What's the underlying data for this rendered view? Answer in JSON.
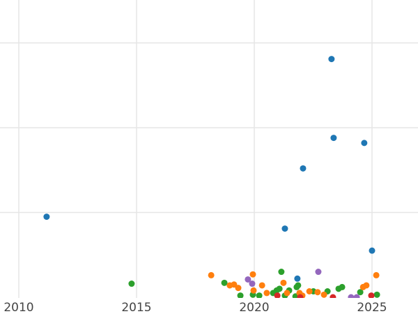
{
  "chart_data": {
    "type": "scatter",
    "title": "",
    "xlabel": "",
    "ylabel": "",
    "xlim": [
      2009.95,
      2027.0
    ],
    "ylim": [
      0,
      3.5
    ],
    "grid": true,
    "x_ticks": [
      "2010",
      "2015",
      "2020",
      "2025"
    ],
    "y_gridlines": [
      1,
      2,
      3
    ],
    "series": [
      {
        "color": "#1f77b4",
        "points": [
          [
            2023.28,
            2.81
          ],
          [
            2023.37,
            1.88
          ],
          [
            2024.67,
            1.82
          ],
          [
            2022.07,
            1.52
          ],
          [
            2011.18,
            0.95
          ],
          [
            2021.3,
            0.81
          ],
          [
            2025.0,
            0.55
          ],
          [
            2021.83,
            0.22
          ]
        ]
      },
      {
        "color": "#2ca02c",
        "points": [
          [
            2014.79,
            0.16
          ],
          [
            2018.73,
            0.17
          ],
          [
            2019.41,
            0.02
          ],
          [
            2019.94,
            0.03
          ],
          [
            2020.21,
            0.02
          ],
          [
            2020.8,
            0.05
          ],
          [
            2020.95,
            0.08
          ],
          [
            2021.07,
            0.1
          ],
          [
            2021.15,
            0.3
          ],
          [
            2021.3,
            0.02
          ],
          [
            2021.48,
            0.08
          ],
          [
            2021.8,
            0.12
          ],
          [
            2021.86,
            0.14
          ],
          [
            2021.75,
            0.01
          ],
          [
            2022.51,
            0.07
          ],
          [
            2023.11,
            0.07
          ],
          [
            2023.58,
            0.1
          ],
          [
            2023.73,
            0.12
          ],
          [
            2024.5,
            0.06
          ],
          [
            2025.21,
            0.03
          ]
        ]
      },
      {
        "color": "#ff7f0e",
        "points": [
          [
            2018.17,
            0.26
          ],
          [
            2018.96,
            0.14
          ],
          [
            2019.14,
            0.15
          ],
          [
            2019.32,
            0.11
          ],
          [
            2019.94,
            0.27
          ],
          [
            2019.97,
            0.08
          ],
          [
            2020.33,
            0.14
          ],
          [
            2020.53,
            0.05
          ],
          [
            2021.24,
            0.17
          ],
          [
            2021.39,
            0.05
          ],
          [
            2021.92,
            0.05
          ],
          [
            2022.04,
            0.02
          ],
          [
            2022.34,
            0.07
          ],
          [
            2022.69,
            0.06
          ],
          [
            2022.96,
            0.03
          ],
          [
            2024.62,
            0.12
          ],
          [
            2024.76,
            0.14
          ],
          [
            2025.18,
            0.26
          ]
        ]
      },
      {
        "color": "#9467bd",
        "points": [
          [
            2019.73,
            0.21
          ],
          [
            2019.91,
            0.16
          ],
          [
            2022.72,
            0.3
          ],
          [
            2024.11,
            0.0
          ],
          [
            2024.35,
            0.0
          ]
        ]
      },
      {
        "color": "#d62728",
        "points": [
          [
            2020.98,
            0.02
          ],
          [
            2021.95,
            0.0
          ],
          [
            2023.34,
            0.0
          ],
          [
            2024.97,
            0.02
          ]
        ]
      }
    ]
  }
}
